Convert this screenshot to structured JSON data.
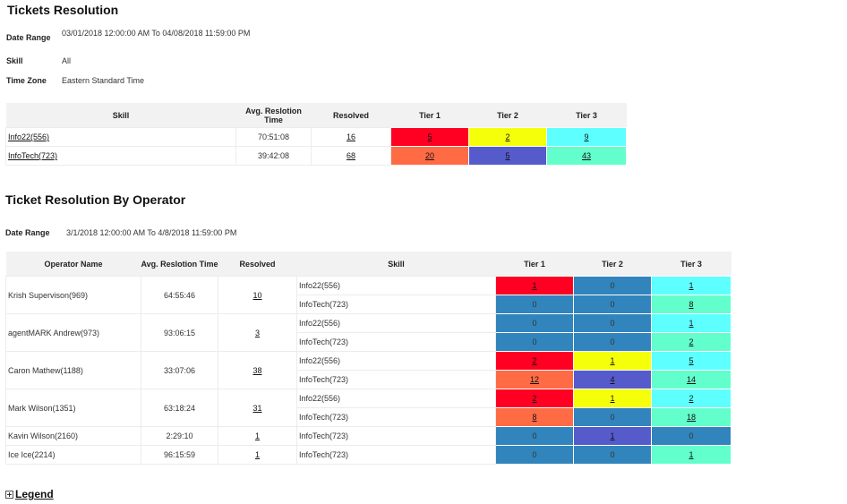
{
  "report": {
    "title": "Tickets Resolution",
    "filters": {
      "date_range_label": "Date Range",
      "date_range_value": "03/01/2018 12:00:00 AM  To  04/08/2018 11:59:00 PM",
      "skill_label": "Skill",
      "skill_value": "All",
      "timezone_label": "Time Zone",
      "timezone_value": "Eastern Standard Time"
    }
  },
  "colors": {
    "red": "#ff0022",
    "orange": "#ff6b44",
    "yellow": "#f5ff0a",
    "purple": "#565bcc",
    "cyan": "#5effff",
    "mint": "#62ffcc",
    "blue": "#3185bc"
  },
  "summary": {
    "headers": [
      "Skill",
      "Avg. Reslotion Time",
      "Resolved",
      "Tier 1",
      "Tier 2",
      "Tier 3"
    ],
    "rows": [
      {
        "skill": "Info22(556)",
        "avg_time": "70:51:08",
        "resolved": "16",
        "tiers": [
          {
            "value": "5",
            "color": "red"
          },
          {
            "value": "2",
            "color": "yellow"
          },
          {
            "value": "9",
            "color": "cyan"
          }
        ]
      },
      {
        "skill": "InfoTech(723)",
        "avg_time": "39:42:08",
        "resolved": "68",
        "tiers": [
          {
            "value": "20",
            "color": "orange"
          },
          {
            "value": "5",
            "color": "purple"
          },
          {
            "value": "43",
            "color": "mint"
          }
        ]
      }
    ]
  },
  "operator_section": {
    "title": "Ticket Resolution By Operator",
    "date_range_label": "Date Range",
    "date_range_value": "3/1/2018 12:00:00 AM  To  4/8/2018 11:59:00 PM",
    "headers": [
      "Operator Name",
      "Avg. Reslotion Time",
      "Resolved",
      "Skill",
      "Tier 1",
      "Tier 2",
      "Tier 3"
    ],
    "operators": [
      {
        "name": "Krish Supervison(969)",
        "avg_time": "64:55:46",
        "resolved": "10",
        "skills": [
          {
            "skill": "Info22(556)",
            "tiers": [
              {
                "value": "1",
                "color": "red",
                "link": true
              },
              {
                "value": "0",
                "color": "blue",
                "link": false
              },
              {
                "value": "1",
                "color": "cyan",
                "link": true
              }
            ]
          },
          {
            "skill": "InfoTech(723)",
            "tiers": [
              {
                "value": "0",
                "color": "blue",
                "link": false
              },
              {
                "value": "0",
                "color": "blue",
                "link": false
              },
              {
                "value": "8",
                "color": "mint",
                "link": true
              }
            ]
          }
        ]
      },
      {
        "name": "agentMARK Andrew(973)",
        "avg_time": "93:06:15",
        "resolved": "3",
        "skills": [
          {
            "skill": "Info22(556)",
            "tiers": [
              {
                "value": "0",
                "color": "blue",
                "link": false
              },
              {
                "value": "0",
                "color": "blue",
                "link": false
              },
              {
                "value": "1",
                "color": "cyan",
                "link": true
              }
            ]
          },
          {
            "skill": "InfoTech(723)",
            "tiers": [
              {
                "value": "0",
                "color": "blue",
                "link": false
              },
              {
                "value": "0",
                "color": "blue",
                "link": false
              },
              {
                "value": "2",
                "color": "mint",
                "link": true
              }
            ]
          }
        ]
      },
      {
        "name": "Caron Mathew(1188)",
        "avg_time": "33:07:06",
        "resolved": "38",
        "skills": [
          {
            "skill": "Info22(556)",
            "tiers": [
              {
                "value": "2",
                "color": "red",
                "link": true
              },
              {
                "value": "1",
                "color": "yellow",
                "link": true
              },
              {
                "value": "5",
                "color": "cyan",
                "link": true
              }
            ]
          },
          {
            "skill": "InfoTech(723)",
            "tiers": [
              {
                "value": "12",
                "color": "orange",
                "link": true
              },
              {
                "value": "4",
                "color": "purple",
                "link": true
              },
              {
                "value": "14",
                "color": "mint",
                "link": true
              }
            ]
          }
        ]
      },
      {
        "name": "Mark Wilson(1351)",
        "avg_time": "63:18:24",
        "resolved": "31",
        "skills": [
          {
            "skill": "Info22(556)",
            "tiers": [
              {
                "value": "2",
                "color": "red",
                "link": true
              },
              {
                "value": "1",
                "color": "yellow",
                "link": true
              },
              {
                "value": "2",
                "color": "cyan",
                "link": true
              }
            ]
          },
          {
            "skill": "InfoTech(723)",
            "tiers": [
              {
                "value": "8",
                "color": "orange",
                "link": true
              },
              {
                "value": "0",
                "color": "blue",
                "link": false
              },
              {
                "value": "18",
                "color": "mint",
                "link": true
              }
            ]
          }
        ]
      },
      {
        "name": "Kavin Wilson(2160)",
        "avg_time": "2:29:10",
        "resolved": "1",
        "skills": [
          {
            "skill": "InfoTech(723)",
            "tiers": [
              {
                "value": "0",
                "color": "blue",
                "link": false
              },
              {
                "value": "1",
                "color": "purple",
                "link": true
              },
              {
                "value": "0",
                "color": "blue",
                "link": false
              }
            ]
          }
        ]
      },
      {
        "name": "Ice Ice(2214)",
        "avg_time": "96:15:59",
        "resolved": "1",
        "skills": [
          {
            "skill": "InfoTech(723)",
            "tiers": [
              {
                "value": "0",
                "color": "blue",
                "link": false
              },
              {
                "value": "0",
                "color": "blue",
                "link": false
              },
              {
                "value": "1",
                "color": "mint",
                "link": true
              }
            ]
          }
        ]
      }
    ]
  },
  "legend": {
    "label": "Legend",
    "icon": "expand-plus-icon"
  }
}
